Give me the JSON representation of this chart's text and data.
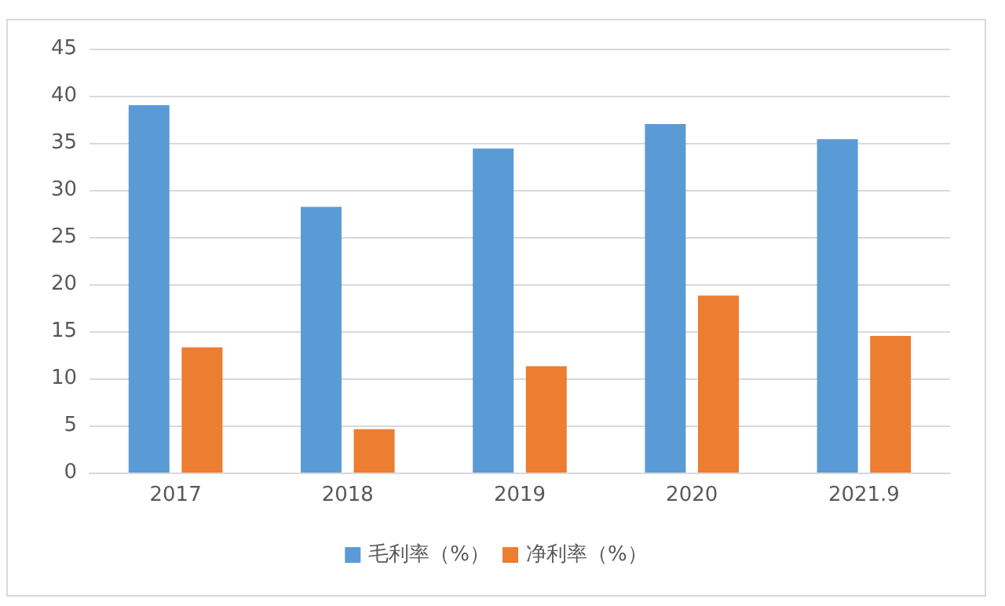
{
  "chart_data": {
    "type": "bar",
    "categories": [
      "2017",
      "2018",
      "2019",
      "2020",
      "2021.9"
    ],
    "series": [
      {
        "name": "毛利率（%）",
        "color": "#5b9bd5",
        "values": [
          39.0,
          28.2,
          34.4,
          37.0,
          35.4
        ]
      },
      {
        "name": "净利率（%）",
        "color": "#ed7d31",
        "values": [
          13.3,
          4.6,
          11.3,
          18.8,
          14.5
        ]
      }
    ],
    "ylim": [
      0,
      45
    ],
    "yticks": [
      0,
      5,
      10,
      15,
      20,
      25,
      30,
      35,
      40,
      45
    ],
    "grid": "y",
    "legend": "bottom"
  }
}
